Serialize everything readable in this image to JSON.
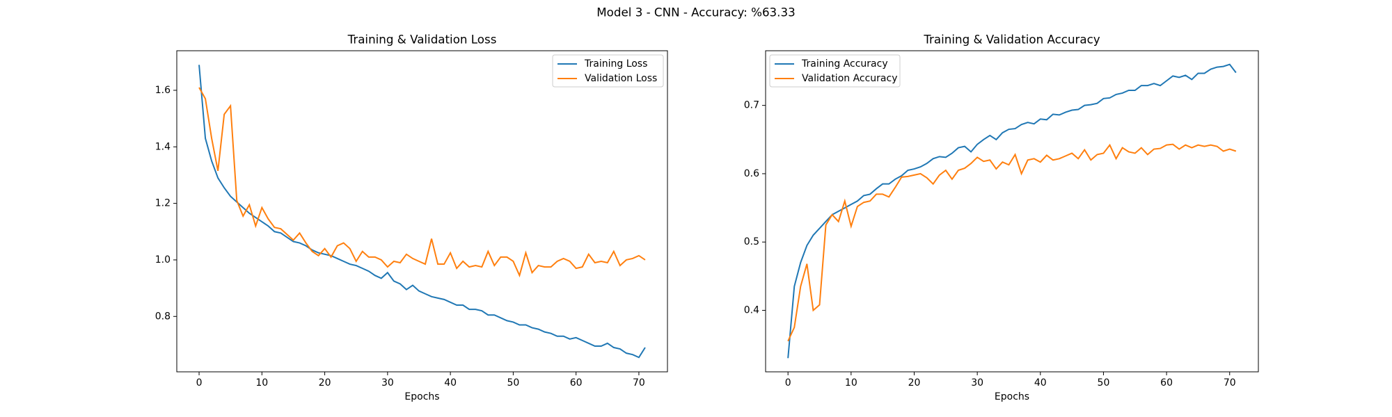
{
  "title": "Model 3 - CNN - Accuracy: %63.33",
  "chart_data": [
    {
      "type": "line",
      "title": "Training & Validation Loss",
      "x_label": "Epochs",
      "x": [
        0,
        1,
        2,
        3,
        4,
        5,
        6,
        7,
        8,
        9,
        10,
        11,
        12,
        13,
        14,
        15,
        16,
        17,
        18,
        19,
        20,
        21,
        22,
        23,
        24,
        25,
        26,
        27,
        28,
        29,
        30,
        31,
        32,
        33,
        34,
        35,
        36,
        37,
        38,
        39,
        40,
        41,
        42,
        43,
        44,
        45,
        46,
        47,
        48,
        49,
        50,
        51,
        52,
        53,
        54,
        55,
        56,
        57,
        58,
        59,
        60,
        61,
        62,
        63,
        64,
        65,
        66,
        67,
        68,
        69,
        70,
        71
      ],
      "xlim": [
        -3.55,
        74.55
      ],
      "xticks": [
        0,
        10,
        20,
        30,
        40,
        50,
        60,
        70
      ],
      "ylim": [
        0.604,
        1.74
      ],
      "yticks": [
        0.8,
        {
          "value": 1,
          "label": "1.0"
        },
        1.2,
        1.4,
        1.6
      ],
      "legend": "upper right",
      "series": [
        {
          "name": "Training Loss",
          "color": "#1f77b4",
          "values": [
            1.69,
            1.43,
            1.35,
            1.29,
            1.255,
            1.225,
            1.205,
            1.185,
            1.165,
            1.15,
            1.135,
            1.12,
            1.1,
            1.095,
            1.08,
            1.065,
            1.06,
            1.05,
            1.035,
            1.025,
            1.02,
            1.015,
            1.005,
            0.995,
            0.985,
            0.98,
            0.97,
            0.96,
            0.945,
            0.935,
            0.955,
            0.925,
            0.915,
            0.895,
            0.91,
            0.89,
            0.88,
            0.87,
            0.865,
            0.86,
            0.85,
            0.84,
            0.84,
            0.825,
            0.825,
            0.82,
            0.805,
            0.805,
            0.795,
            0.785,
            0.78,
            0.77,
            0.77,
            0.76,
            0.755,
            0.745,
            0.74,
            0.73,
            0.73,
            0.72,
            0.725,
            0.715,
            0.705,
            0.695,
            0.695,
            0.705,
            0.69,
            0.685,
            0.67,
            0.665,
            0.655,
            0.69
          ]
        },
        {
          "name": "Validation Loss",
          "color": "#ff7f0e",
          "values": [
            1.61,
            1.57,
            1.43,
            1.315,
            1.515,
            1.545,
            1.21,
            1.155,
            1.195,
            1.12,
            1.185,
            1.145,
            1.115,
            1.11,
            1.09,
            1.07,
            1.095,
            1.06,
            1.03,
            1.015,
            1.04,
            1.01,
            1.05,
            1.06,
            1.04,
            0.995,
            1.03,
            1.01,
            1.01,
            1.0,
            0.975,
            0.995,
            0.99,
            1.02,
            1.005,
            0.995,
            0.985,
            1.075,
            0.985,
            0.985,
            1.025,
            0.97,
            0.995,
            0.975,
            0.98,
            0.975,
            1.03,
            0.98,
            1.01,
            1.01,
            0.995,
            0.945,
            1.025,
            0.955,
            0.98,
            0.975,
            0.975,
            0.995,
            1.005,
            0.995,
            0.97,
            0.975,
            1.02,
            0.99,
            0.995,
            0.99,
            1.03,
            0.98,
            1.0,
            1.005,
            1.015,
            1.0
          ]
        }
      ]
    },
    {
      "type": "line",
      "title": "Training & Validation Accuracy",
      "x_label": "Epochs",
      "x": [
        0,
        1,
        2,
        3,
        4,
        5,
        6,
        7,
        8,
        9,
        10,
        11,
        12,
        13,
        14,
        15,
        16,
        17,
        18,
        19,
        20,
        21,
        22,
        23,
        24,
        25,
        26,
        27,
        28,
        29,
        30,
        31,
        32,
        33,
        34,
        35,
        36,
        37,
        38,
        39,
        40,
        41,
        42,
        43,
        44,
        45,
        46,
        47,
        48,
        49,
        50,
        51,
        52,
        53,
        54,
        55,
        56,
        57,
        58,
        59,
        60,
        61,
        62,
        63,
        64,
        65,
        66,
        67,
        68,
        69,
        70,
        71
      ],
      "xlim": [
        -3.55,
        74.55
      ],
      "xticks": [
        0,
        10,
        20,
        30,
        40,
        50,
        60,
        70
      ],
      "ylim": [
        0.31,
        0.78
      ],
      "yticks": [
        0.4,
        0.5,
        0.6,
        0.7
      ],
      "legend": "upper left",
      "series": [
        {
          "name": "Training Accuracy",
          "color": "#1f77b4",
          "values": [
            0.33,
            0.435,
            0.47,
            0.495,
            0.51,
            0.52,
            0.53,
            0.54,
            0.545,
            0.55,
            0.555,
            0.56,
            0.568,
            0.57,
            0.578,
            0.585,
            0.585,
            0.592,
            0.597,
            0.605,
            0.607,
            0.61,
            0.615,
            0.622,
            0.625,
            0.624,
            0.63,
            0.638,
            0.64,
            0.632,
            0.643,
            0.65,
            0.656,
            0.65,
            0.66,
            0.665,
            0.666,
            0.672,
            0.675,
            0.673,
            0.68,
            0.679,
            0.687,
            0.686,
            0.69,
            0.693,
            0.694,
            0.7,
            0.701,
            0.703,
            0.71,
            0.711,
            0.716,
            0.718,
            0.722,
            0.722,
            0.729,
            0.729,
            0.732,
            0.729,
            0.736,
            0.743,
            0.741,
            0.744,
            0.738,
            0.747,
            0.747,
            0.753,
            0.756,
            0.757,
            0.76,
            0.748
          ]
        },
        {
          "name": "Validation Accuracy",
          "color": "#ff7f0e",
          "values": [
            0.355,
            0.375,
            0.435,
            0.468,
            0.4,
            0.408,
            0.525,
            0.54,
            0.53,
            0.56,
            0.523,
            0.552,
            0.558,
            0.56,
            0.57,
            0.57,
            0.566,
            0.58,
            0.595,
            0.596,
            0.598,
            0.6,
            0.594,
            0.585,
            0.598,
            0.605,
            0.592,
            0.605,
            0.608,
            0.615,
            0.624,
            0.618,
            0.62,
            0.607,
            0.617,
            0.613,
            0.628,
            0.6,
            0.62,
            0.622,
            0.617,
            0.627,
            0.62,
            0.622,
            0.626,
            0.63,
            0.622,
            0.635,
            0.62,
            0.628,
            0.63,
            0.642,
            0.622,
            0.638,
            0.632,
            0.63,
            0.638,
            0.628,
            0.636,
            0.637,
            0.642,
            0.643,
            0.636,
            0.642,
            0.638,
            0.642,
            0.64,
            0.642,
            0.64,
            0.633,
            0.636,
            0.633
          ]
        }
      ]
    }
  ]
}
